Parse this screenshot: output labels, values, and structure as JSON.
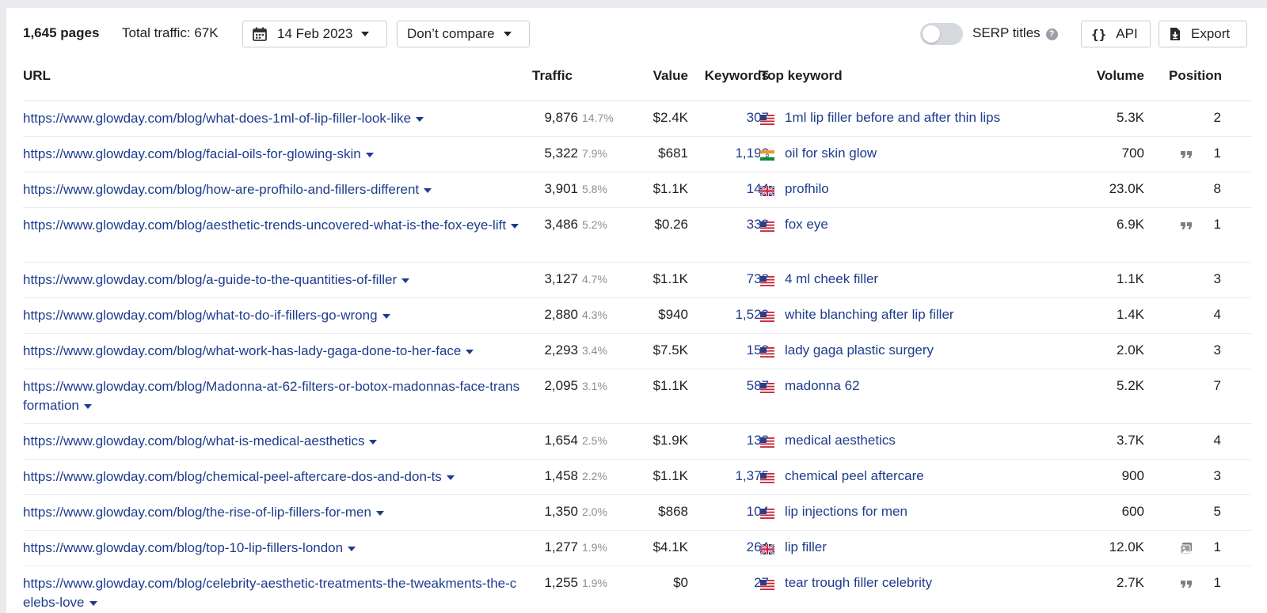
{
  "toolbar": {
    "pages_count": "1,645 pages",
    "total_traffic": "Total traffic: 67K",
    "date": "14 Feb 2023",
    "compare": "Don’t compare",
    "serp_titles": "SERP titles",
    "serp_titles_enabled": false,
    "api": "API",
    "export": "Export"
  },
  "columns": {
    "url": "URL",
    "traffic": "Traffic",
    "value": "Value",
    "keywords": "Keywords",
    "top_keyword": "Top keyword",
    "volume": "Volume",
    "position": "Position"
  },
  "colors": {
    "link": "#1e3c8c",
    "muted": "#8a8f96",
    "background": "#e9ebee"
  },
  "rows": [
    {
      "url": "https://www.glowday.com/blog/what-does-1ml-of-lip-filler-look-like",
      "traffic": "9,876",
      "pct": "14.7%",
      "value": "$2.4K",
      "keywords": "307",
      "flag": "us-flag-icon",
      "top_keyword": "1ml lip filler before and after thin lips",
      "volume": "5.3K",
      "feature": "",
      "position": "2"
    },
    {
      "url": "https://www.glowday.com/blog/facial-oils-for-glowing-skin",
      "traffic": "5,322",
      "pct": "7.9%",
      "value": "$681",
      "keywords": "1,196",
      "flag": "in-flag-icon",
      "top_keyword": "oil for skin glow",
      "volume": "700",
      "feature": "quote-icon",
      "position": "1"
    },
    {
      "url": "https://www.glowday.com/blog/how-are-profhilo-and-fillers-different",
      "traffic": "3,901",
      "pct": "5.8%",
      "value": "$1.1K",
      "keywords": "144",
      "flag": "uk-flag-icon",
      "top_keyword": "profhilo",
      "volume": "23.0K",
      "feature": "",
      "position": "8"
    },
    {
      "url": "https://www.glowday.com/blog/aesthetic-trends-uncovered-what-is-the-fox-eye-lift",
      "traffic": "3,486",
      "pct": "5.2%",
      "value": "$0.26",
      "keywords": "332",
      "flag": "us-flag-icon",
      "top_keyword": "fox eye",
      "volume": "6.9K",
      "feature": "quote-icon",
      "position": "1"
    },
    {
      "url": "https://www.glowday.com/blog/a-guide-to-the-quantities-of-filler",
      "traffic": "3,127",
      "pct": "4.7%",
      "value": "$1.1K",
      "keywords": "738",
      "flag": "us-flag-icon",
      "top_keyword": "4 ml cheek filler",
      "volume": "1.1K",
      "feature": "",
      "position": "3"
    },
    {
      "url": "https://www.glowday.com/blog/what-to-do-if-fillers-go-wrong",
      "traffic": "2,880",
      "pct": "4.3%",
      "value": "$940",
      "keywords": "1,529",
      "flag": "us-flag-icon",
      "top_keyword": "white blanching after lip filler",
      "volume": "1.4K",
      "feature": "",
      "position": "4"
    },
    {
      "url": "https://www.glowday.com/blog/what-work-has-lady-gaga-done-to-her-face",
      "traffic": "2,293",
      "pct": "3.4%",
      "value": "$7.5K",
      "keywords": "152",
      "flag": "us-flag-icon",
      "top_keyword": "lady gaga plastic surgery",
      "volume": "2.0K",
      "feature": "",
      "position": "3"
    },
    {
      "url": "https://www.glowday.com/blog/Madonna-at-62-filters-or-botox-madonnas-face-transformation",
      "traffic": "2,095",
      "pct": "3.1%",
      "value": "$1.1K",
      "keywords": "587",
      "flag": "us-flag-icon",
      "top_keyword": "madonna 62",
      "volume": "5.2K",
      "feature": "",
      "position": "7"
    },
    {
      "url": "https://www.glowday.com/blog/what-is-medical-aesthetics",
      "traffic": "1,654",
      "pct": "2.5%",
      "value": "$1.9K",
      "keywords": "133",
      "flag": "us-flag-icon",
      "top_keyword": "medical aesthetics",
      "volume": "3.7K",
      "feature": "",
      "position": "4"
    },
    {
      "url": "https://www.glowday.com/blog/chemical-peel-aftercare-dos-and-don-ts",
      "traffic": "1,458",
      "pct": "2.2%",
      "value": "$1.1K",
      "keywords": "1,375",
      "flag": "us-flag-icon",
      "top_keyword": "chemical peel aftercare",
      "volume": "900",
      "feature": "",
      "position": "3"
    },
    {
      "url": "https://www.glowday.com/blog/the-rise-of-lip-fillers-for-men",
      "traffic": "1,350",
      "pct": "2.0%",
      "value": "$868",
      "keywords": "104",
      "flag": "us-flag-icon",
      "top_keyword": "lip injections for men",
      "volume": "600",
      "feature": "",
      "position": "5"
    },
    {
      "url": "https://www.glowday.com/blog/top-10-lip-fillers-london",
      "traffic": "1,277",
      "pct": "1.9%",
      "value": "$4.1K",
      "keywords": "264",
      "flag": "uk-flag-icon",
      "top_keyword": "lip filler",
      "volume": "12.0K",
      "feature": "image-pack-icon",
      "position": "1"
    },
    {
      "url": "https://www.glowday.com/blog/celebrity-aesthetic-treatments-the-tweakments-the-celebs-love",
      "traffic": "1,255",
      "pct": "1.9%",
      "value": "$0",
      "keywords": "27",
      "flag": "us-flag-icon",
      "top_keyword": "tear trough filler celebrity",
      "volume": "2.7K",
      "feature": "quote-icon",
      "position": "1"
    }
  ]
}
